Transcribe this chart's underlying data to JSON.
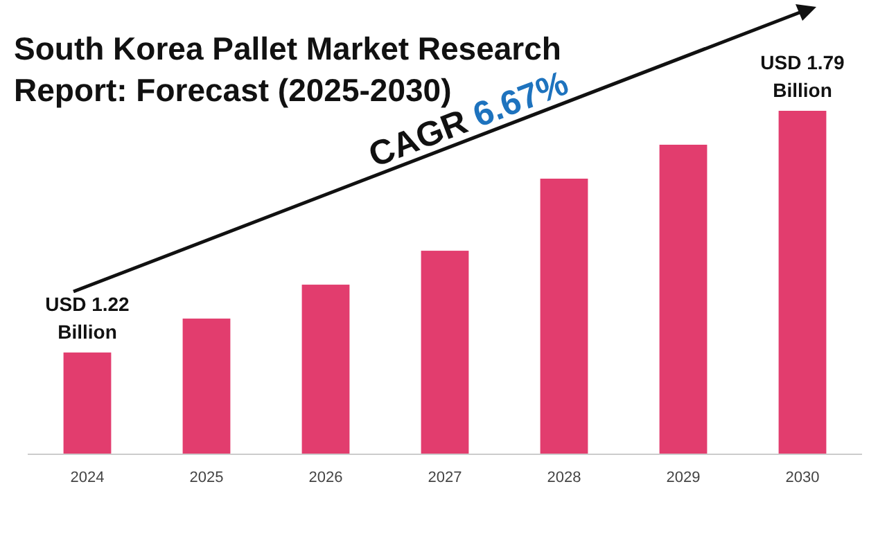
{
  "chart_data": {
    "type": "bar",
    "title": "South Korea Pallet Market Research Report: Forecast (2025-2030)",
    "categories": [
      "2024",
      "2025",
      "2026",
      "2027",
      "2028",
      "2029",
      "2030"
    ],
    "values": [
      1.22,
      1.3,
      1.38,
      1.46,
      1.63,
      1.71,
      1.79
    ],
    "value_labels": [
      "USD 1.22 Billion",
      null,
      null,
      null,
      null,
      null,
      "USD 1.79 Billion"
    ],
    "ylim": [
      0.98,
      1.79
    ],
    "tick_labels": "x",
    "color": "#e23d6e",
    "annotations": [
      "CAGR 6.67%"
    ]
  }
}
